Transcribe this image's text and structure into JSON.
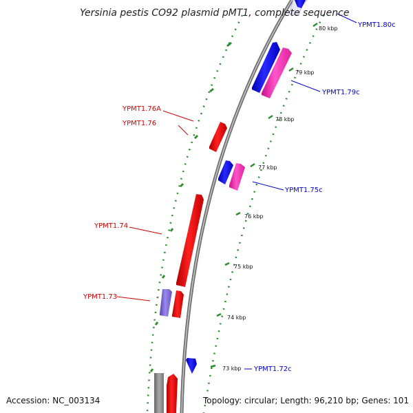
{
  "title": "Yersinia pestis CO92 plasmid pMT1, complete sequence",
  "footer": {
    "accession": "Accession: NC_003134",
    "summary": "Topology: circular; Length: 96,210 bp; Genes: 101"
  },
  "colors": {
    "backbone": "#8a8a8a",
    "ticks": "#2e8b2e",
    "forward_gene": "#ee1111",
    "reverse_gene": "#1111dd",
    "reverse_gene_alt": "#ee2299",
    "hypothetical_gene": "#7766cc",
    "forward_label": "#cc0000",
    "reverse_label": "#0000cc"
  },
  "ticks": [
    "80 kbp",
    "79 kbp",
    "78 kbp",
    "77 kbp",
    "76 kbp",
    "75 kbp",
    "74 kbp",
    "73 kbp"
  ],
  "genes": {
    "ypmt1_80c": "YPMT1.80c",
    "ypmt1_79c": "YPMT1.79c",
    "ypmt1_76a": "YPMT1.76A",
    "ypmt1_76": "YPMT1.76",
    "ypmt1_75c": "YPMT1.75c",
    "ypmt1_74": "YPMT1.74",
    "ypmt1_73": "YPMT1.73",
    "ypmt1_72c": "YPMT1.72c"
  }
}
